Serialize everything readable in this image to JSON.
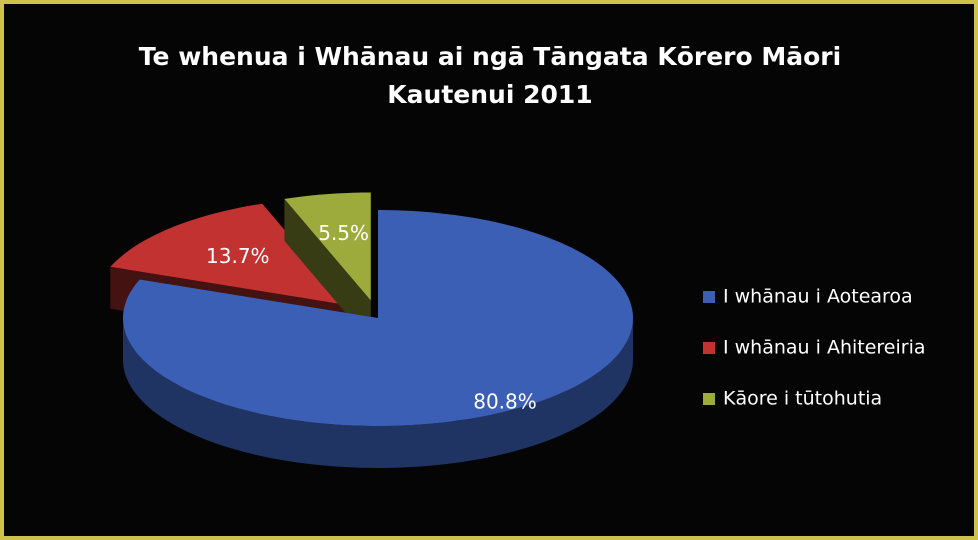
{
  "chart_data": {
    "type": "pie",
    "title": "Te whenua i Whānau ai ngā Tāngata Kōrero Māori",
    "subtitle": "Kautenui 2011",
    "categories": [
      "I whānau i Aotearoa",
      "I whānau i Ahitereiria",
      "Kāore i tūtohutia"
    ],
    "values": [
      80.8,
      13.7,
      5.5
    ],
    "value_labels": [
      "80.8%",
      "13.7%",
      "5.5%"
    ],
    "colors": [
      "#3b5fb4",
      "#c23230",
      "#9cab3c"
    ],
    "legend": "right"
  }
}
